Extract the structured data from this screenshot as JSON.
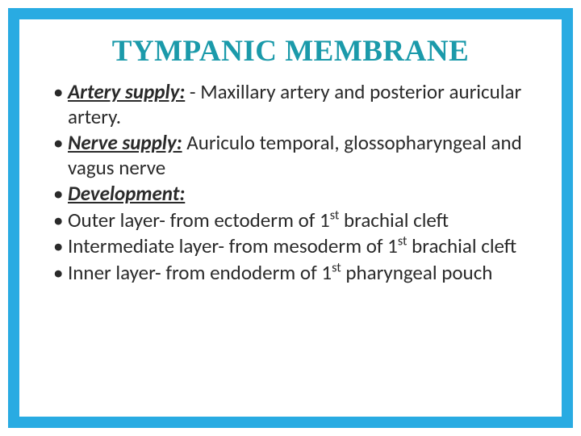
{
  "title": "TYMPANIC MEMBRANE",
  "colors": {
    "border": "#29abe2",
    "title": "#1b9aaa",
    "text": "#2a2a2a",
    "background": "#ffffff"
  },
  "typography": {
    "title_fontsize_pt": 28,
    "title_weight": "bold",
    "title_family": "Book Antiqua / serif",
    "body_fontsize_pt": 19,
    "body_family": "Calibri / sans-serif"
  },
  "bullets": [
    {
      "label": "Artery supply:",
      "label_style": "bold-italic-underline",
      "text": " - Maxillary artery and posterior auricular artery."
    },
    {
      "label": "Nerve supply:",
      "label_style": "bold-italic-underline",
      "text": " Auriculo temporal, glossopharyngeal and vagus nerve"
    },
    {
      "label": "Development:",
      "label_style": "bold-italic-underline",
      "text": ""
    },
    {
      "label": "",
      "label_style": "none",
      "text_html": "Outer layer- from ectoderm of 1<sup>st</sup> brachial cleft"
    },
    {
      "label": "",
      "label_style": "none",
      "text_html": "Intermediate layer- from mesoderm of 1<sup>st</sup> brachial cleft"
    },
    {
      "label": "",
      "label_style": "none",
      "text_html": "Inner layer- from endoderm of 1<sup>st</sup> pharyngeal pouch"
    }
  ],
  "bullet_char": "•"
}
